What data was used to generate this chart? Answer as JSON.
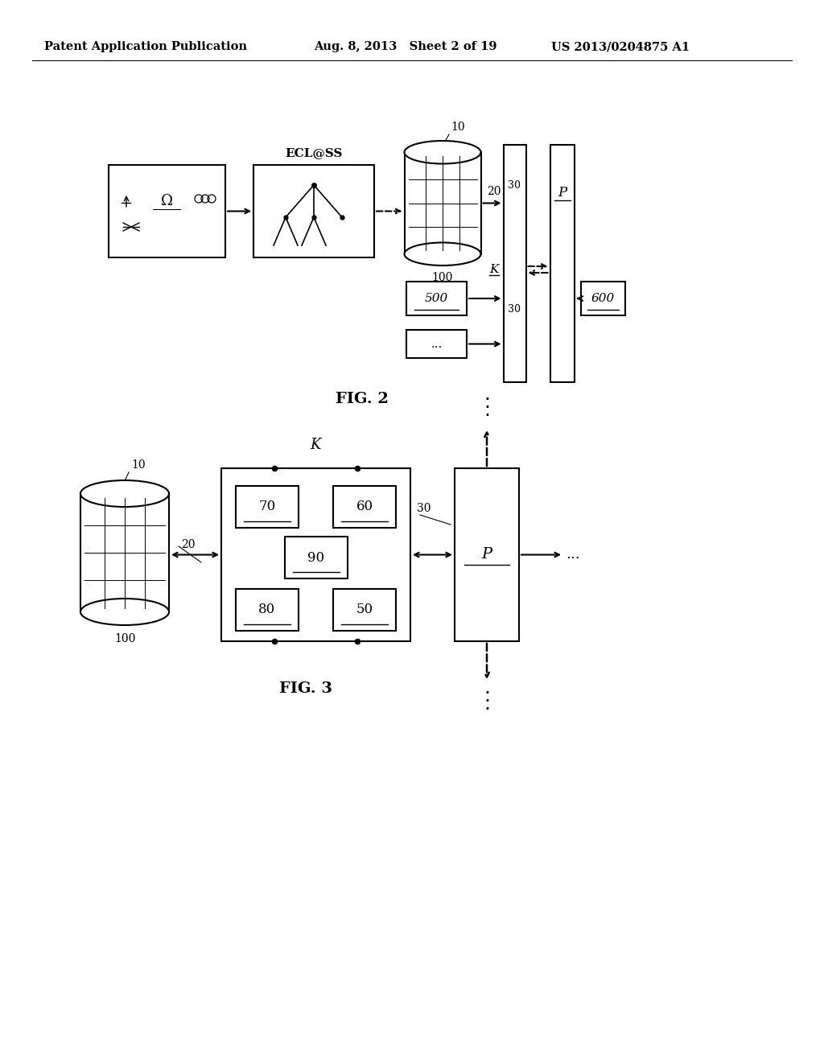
{
  "bg_color": "#ffffff",
  "header_left": "Patent Application Publication",
  "header_mid": "Aug. 8, 2013   Sheet 2 of 19",
  "header_right": "US 2013/0204875 A1",
  "fig2_label": "FIG. 2",
  "fig3_label": "FIG. 3"
}
